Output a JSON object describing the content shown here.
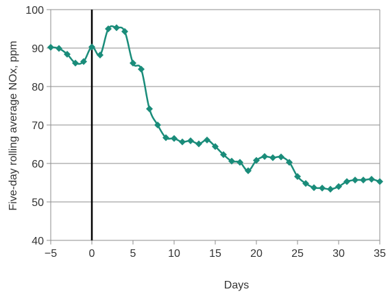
{
  "chart_data": {
    "type": "line",
    "title": "",
    "xlabel": "Days",
    "ylabel": "Five-day rolling average NOx, ppm",
    "xlim": [
      -5,
      35
    ],
    "ylim": [
      40,
      100
    ],
    "xticks": [
      -5,
      0,
      5,
      10,
      15,
      20,
      25,
      30,
      35
    ],
    "xtick_labels": [
      "−5",
      "0",
      "5",
      "10",
      "15",
      "20",
      "25",
      "30",
      "35"
    ],
    "yticks": [
      40,
      50,
      60,
      70,
      80,
      90,
      100
    ],
    "ytick_labels": [
      "40",
      "50",
      "60",
      "70",
      "80",
      "90",
      "100"
    ],
    "grid": {
      "horizontal": true,
      "vertical": false
    },
    "reference_line_x": 0,
    "series": [
      {
        "marker": "diamond",
        "color": "#1a8c7a",
        "x": [
          -5,
          -4,
          -3,
          -2,
          -1,
          0,
          1,
          2,
          3,
          4,
          5,
          6,
          7,
          8,
          9,
          10,
          11,
          12,
          13,
          14,
          15,
          16,
          17,
          18,
          19,
          20,
          21,
          22,
          23,
          24,
          25,
          26,
          27,
          28,
          29,
          30,
          31,
          32,
          33,
          34,
          35
        ],
        "y": [
          90.2,
          89.9,
          88.4,
          86.1,
          86.5,
          90.3,
          88.2,
          95.0,
          95.3,
          94.3,
          86.1,
          84.5,
          74.2,
          70.0,
          66.7,
          66.5,
          65.6,
          65.9,
          65.1,
          66.1,
          64.4,
          62.3,
          60.6,
          60.3,
          58.1,
          60.8,
          61.8,
          61.5,
          61.7,
          60.3,
          56.6,
          54.8,
          53.7,
          53.6,
          53.3,
          54.0,
          55.3,
          55.7,
          55.7,
          55.9,
          55.3
        ]
      }
    ],
    "colors": {
      "series": "#1a8c7a",
      "grid": "#8c8c8c",
      "axis": "#8c8c8c",
      "reference_line": "#000000"
    }
  }
}
